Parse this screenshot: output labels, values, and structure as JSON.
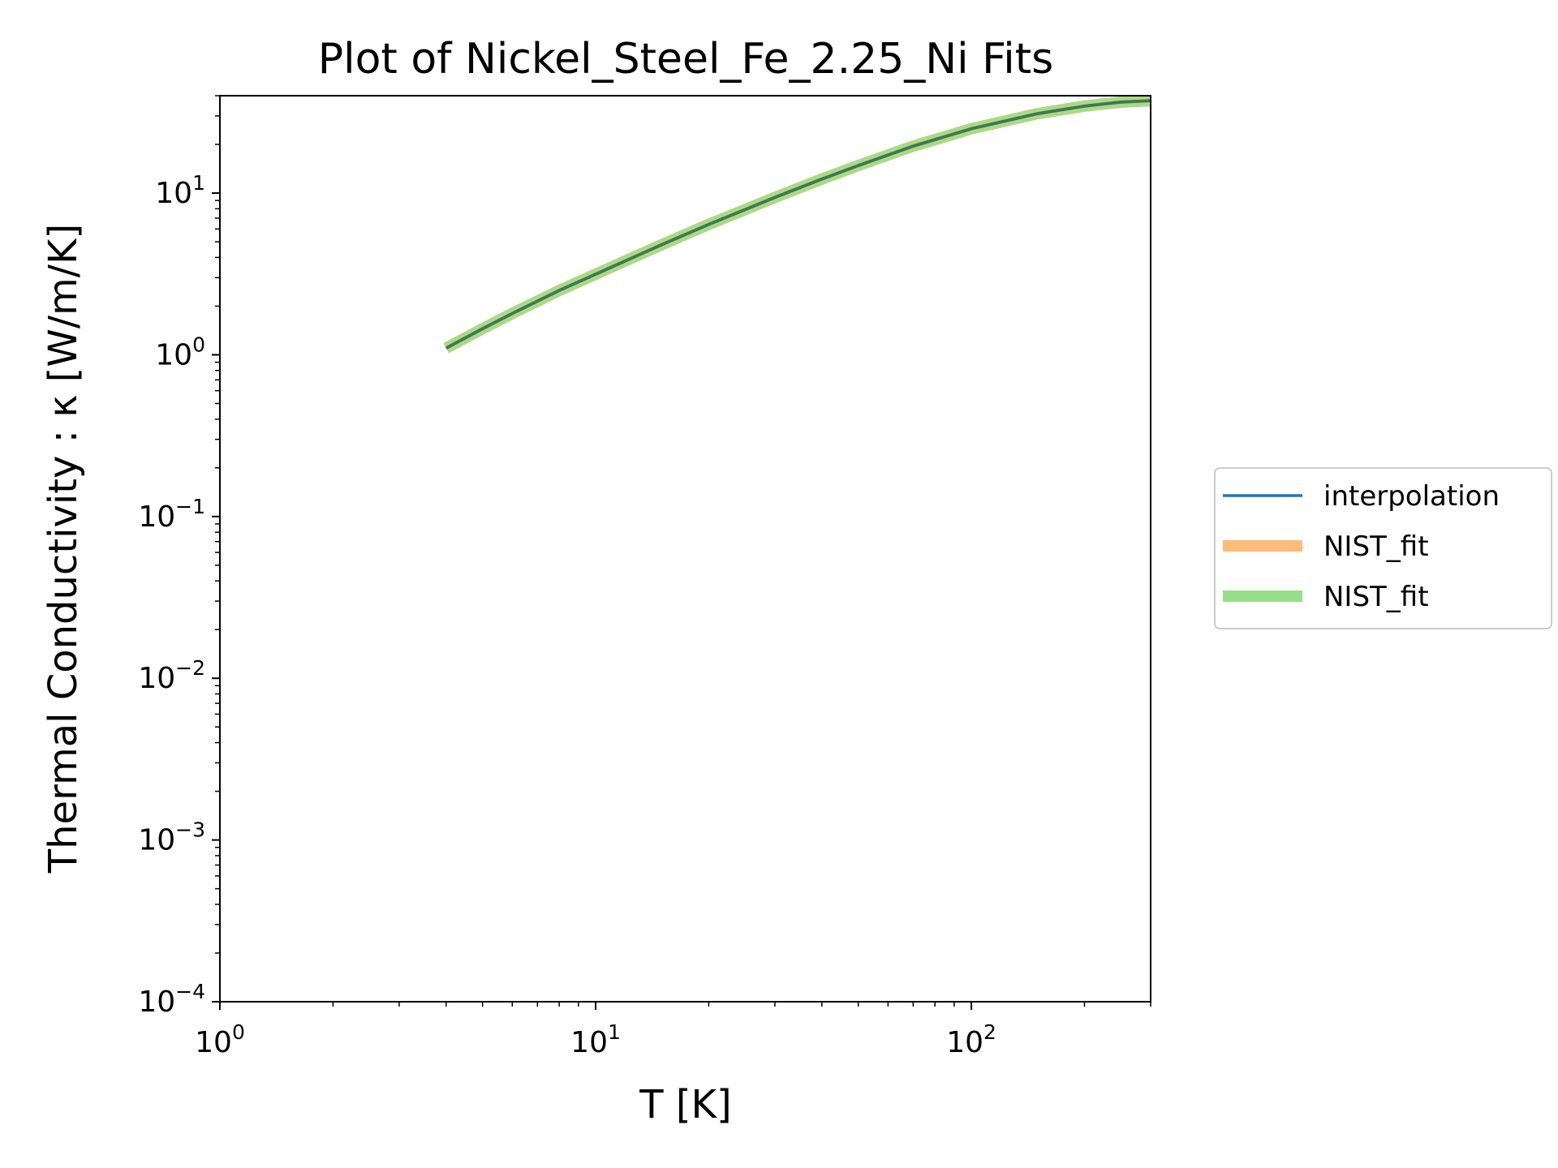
{
  "chart_data": {
    "type": "line",
    "title": "Plot of Nickel_Steel_Fe_2.25_Ni Fits",
    "xlabel": "T [K]",
    "ylabel": "Thermal Conductivity : κ [W/m/K]",
    "xscale": "log",
    "yscale": "log",
    "xlim": [
      1,
      300
    ],
    "ylim": [
      0.0001,
      40
    ],
    "x_ticks": [
      {
        "value": 1,
        "base": "10",
        "exp": "0"
      },
      {
        "value": 10,
        "base": "10",
        "exp": "1"
      },
      {
        "value": 100,
        "base": "10",
        "exp": "2"
      }
    ],
    "y_ticks": [
      {
        "value": 0.0001,
        "base": "10",
        "exp": "−4"
      },
      {
        "value": 0.001,
        "base": "10",
        "exp": "−3"
      },
      {
        "value": 0.01,
        "base": "10",
        "exp": "−2"
      },
      {
        "value": 0.1,
        "base": "10",
        "exp": "−1"
      },
      {
        "value": 1,
        "base": "10",
        "exp": "0"
      },
      {
        "value": 10,
        "base": "10",
        "exp": "1"
      }
    ],
    "legend_position": "right, outside plot",
    "grid": false,
    "series": [
      {
        "name": "interpolation",
        "color": "#1f77b4",
        "style": "thin",
        "x": [
          4,
          5,
          6,
          8,
          10,
          15,
          20,
          30,
          40,
          50,
          70,
          100,
          150,
          200,
          250,
          300
        ],
        "y": [
          1.1,
          1.45,
          1.8,
          2.5,
          3.15,
          4.8,
          6.4,
          9.4,
          12.2,
          14.8,
          19.5,
          25.0,
          31.0,
          34.5,
          36.5,
          37.3
        ]
      },
      {
        "name": "NIST_fit",
        "color": "#ffbb78",
        "style": "thick",
        "x": [
          4,
          5,
          6,
          8,
          10,
          15,
          20,
          30,
          40,
          50,
          70,
          100,
          150,
          200,
          250,
          300
        ],
        "y": [
          1.1,
          1.45,
          1.8,
          2.5,
          3.15,
          4.8,
          6.4,
          9.4,
          12.2,
          14.8,
          19.5,
          25.0,
          31.0,
          34.5,
          36.5,
          37.3
        ]
      },
      {
        "name": "NIST_fit",
        "color": "#98df8a",
        "style": "thick",
        "x": [
          4,
          5,
          6,
          8,
          10,
          15,
          20,
          30,
          40,
          50,
          70,
          100,
          150,
          200,
          250,
          300
        ],
        "y": [
          1.1,
          1.45,
          1.8,
          2.5,
          3.15,
          4.8,
          6.4,
          9.4,
          12.2,
          14.8,
          19.5,
          25.0,
          31.0,
          34.5,
          36.5,
          37.3
        ]
      }
    ]
  }
}
